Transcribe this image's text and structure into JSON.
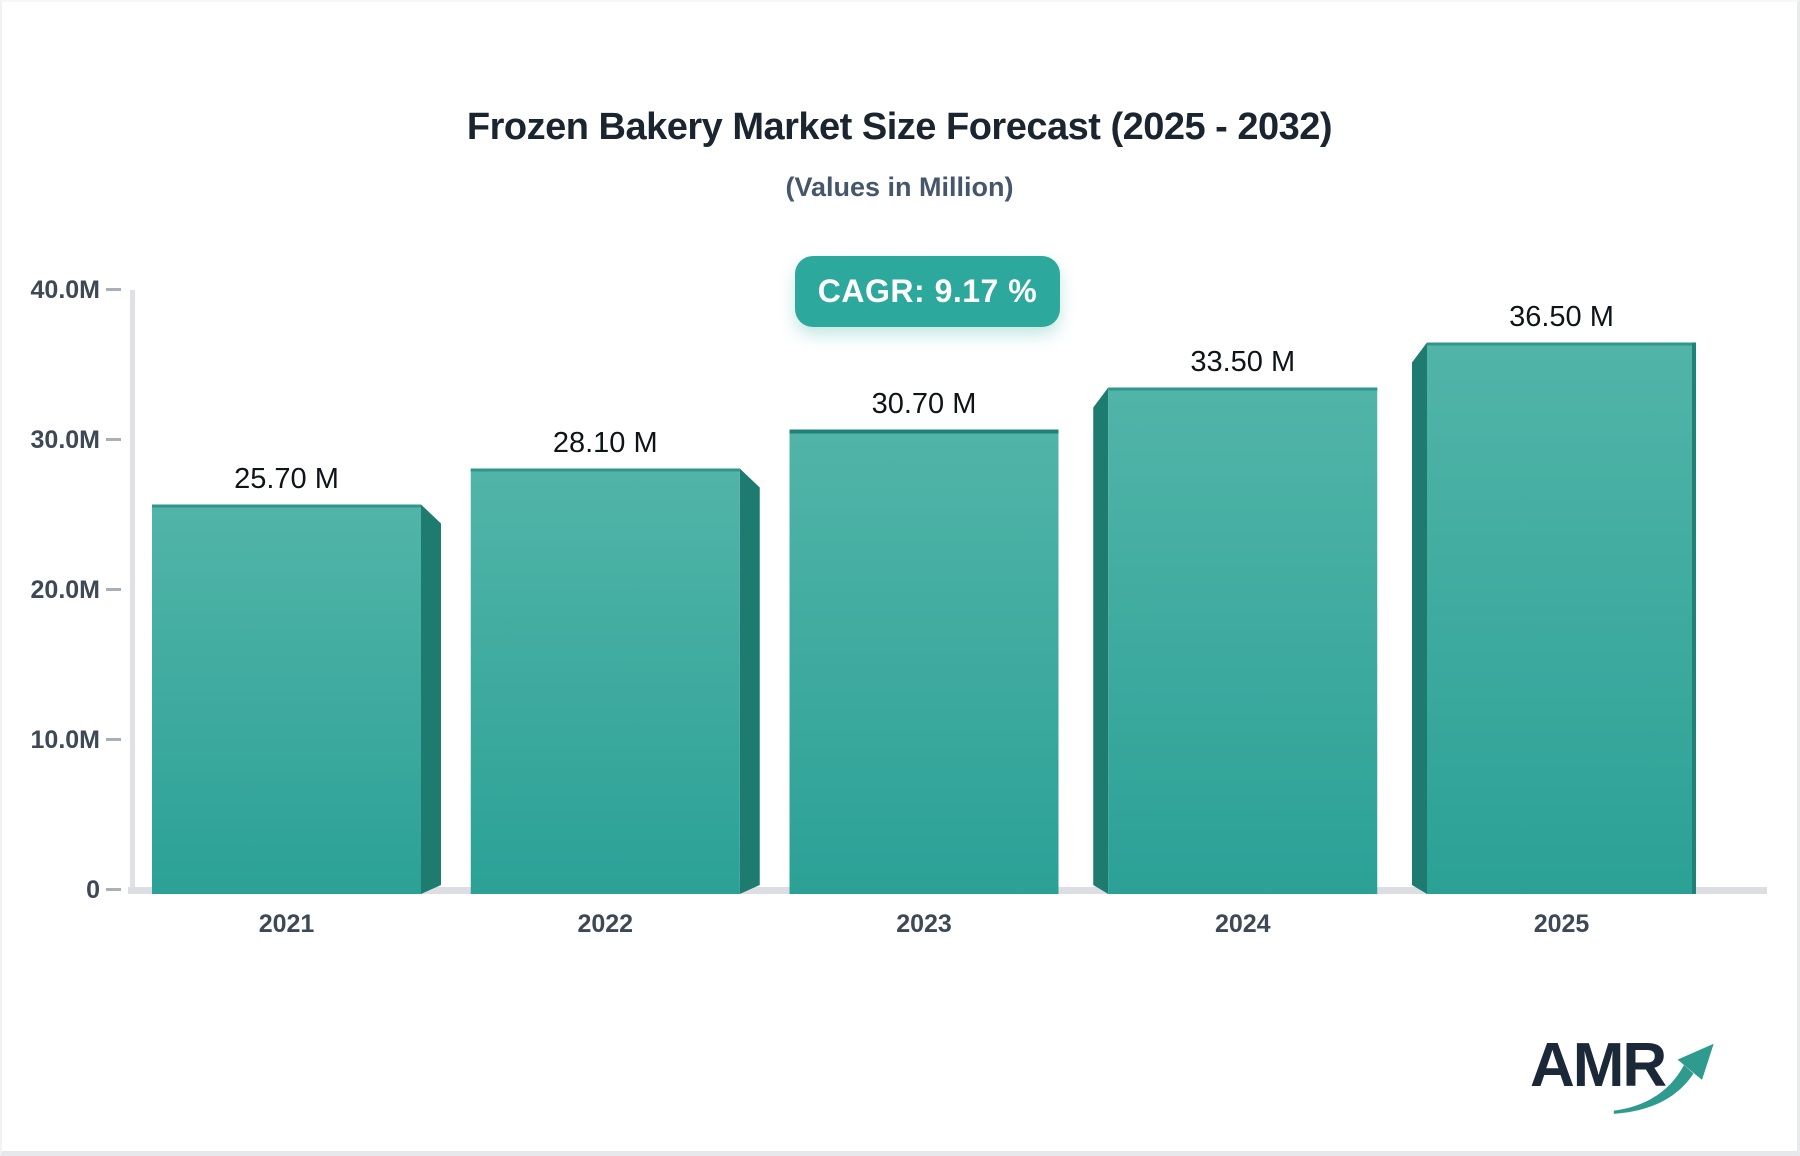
{
  "title": "Frozen Bakery Market Size Forecast (2025 - 2032)",
  "subtitle": "(Values in Million)",
  "cagr_badge": "CAGR: 9.17 %",
  "logo": {
    "text": "AMR",
    "arrow_icon": "growth-arrow-icon"
  },
  "colors": {
    "bar_gradient_top": "#52b4a9",
    "bar_gradient_bottom": "#2ba196",
    "bar_side": "#1d7b6f",
    "bar_top_edge": "#2e968a",
    "bar_center_top_edge": "#1e8277",
    "badge_background": "#2ca99c",
    "axis_line": "#dfe1e6",
    "baseline": "#dcdee3",
    "tick_dash": "#a9b0ba",
    "axis_text": "#3e4956",
    "value_label_text": "#0f1419",
    "title_text": "#1a2530",
    "subtitle_text": "#46566b",
    "logo_text": "#1b2838",
    "logo_arrow": "#2f9a8e"
  },
  "chart_data": {
    "type": "bar",
    "categories": [
      "2021",
      "2022",
      "2023",
      "2024",
      "2025"
    ],
    "values": [
      25.7,
      28.1,
      30.7,
      33.5,
      36.5
    ],
    "bar_labels": [
      "25.70 M",
      "28.10 M",
      "30.70 M",
      "33.50 M",
      "36.50 M"
    ],
    "series_unit": "Million",
    "title": "Frozen Bakery Market Size Forecast (2025 - 2032)",
    "subtitle": "(Values in Million)",
    "cagr": "9.17 %",
    "y_ticks": [
      {
        "value": 0,
        "label": "0"
      },
      {
        "value": 10,
        "label": "10.0M"
      },
      {
        "value": 20,
        "label": "20.0M"
      },
      {
        "value": 30,
        "label": "30.0M"
      },
      {
        "value": 40,
        "label": "40.0M"
      }
    ],
    "ylim": [
      0,
      40
    ],
    "grid": false,
    "legend": false,
    "bar_style": "3d-teal-gradient"
  }
}
